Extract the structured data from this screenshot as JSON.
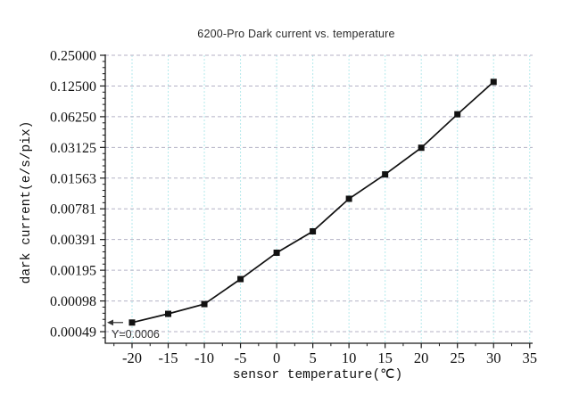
{
  "chart_data": {
    "type": "line",
    "title": "6200-Pro Dark current vs. temperature",
    "xlabel": "sensor temperature(℃)",
    "ylabel": "dark current(e/s/pix)",
    "series_name": "dark current",
    "marker": "square",
    "x": [
      -20,
      -15,
      -10,
      -5,
      0,
      5,
      10,
      15,
      20,
      25,
      30
    ],
    "values": [
      0.0006,
      0.00073,
      0.00091,
      0.0016,
      0.0029,
      0.0047,
      0.0098,
      0.017,
      0.031,
      0.066,
      0.137
    ],
    "x_ticks": [
      -20,
      -15,
      -10,
      -5,
      0,
      5,
      10,
      15,
      20,
      25,
      30,
      35
    ],
    "x_minor_step": 2.5,
    "y_ticks": [
      {
        "label": "0.25000",
        "value": 0.25
      },
      {
        "label": "0.12500",
        "value": 0.125
      },
      {
        "label": "0.06250",
        "value": 0.0625
      },
      {
        "label": "0.03125",
        "value": 0.03125
      },
      {
        "label": "0.01563",
        "value": 0.015625
      },
      {
        "label": "0.00781",
        "value": 0.0078125
      },
      {
        "label": "0.00391",
        "value": 0.00390625
      },
      {
        "label": "0.00195",
        "value": 0.001953125
      },
      {
        "label": "0.00098",
        "value": 0.0009765625
      },
      {
        "label": "0.00049",
        "value": 0.00048828125
      }
    ],
    "y_scale": "log2",
    "xlim": [
      -23.7,
      35.4
    ],
    "ylim": [
      0.000376,
      0.25
    ],
    "grid": true,
    "legend": "none",
    "annotation": {
      "text": "Y=0.0006",
      "x": -20,
      "y": 0.0006,
      "arrow": "left"
    },
    "colors": {
      "line": "#111111",
      "axis": "#1a1a1a",
      "grid_h": "#b4b2c6",
      "grid_v": "#b5eaec",
      "annotation": "#333333"
    }
  }
}
